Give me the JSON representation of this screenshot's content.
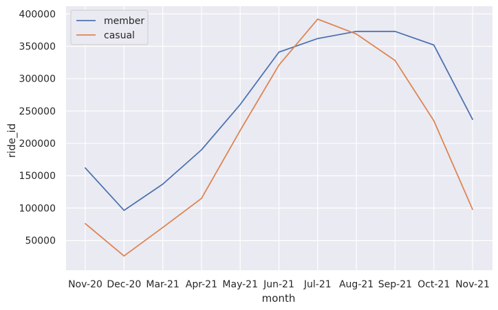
{
  "chart_data": {
    "type": "line",
    "xlabel": "month",
    "ylabel": "ride_id",
    "categories": [
      "Nov-20",
      "Dec-20",
      "Mar-21",
      "Apr-21",
      "May-21",
      "Jun-21",
      "Jul-21",
      "Aug-21",
      "Sep-21",
      "Oct-21",
      "Nov-21"
    ],
    "yticks": [
      50000,
      100000,
      150000,
      200000,
      250000,
      300000,
      350000,
      400000
    ],
    "ylim": [
      4000,
      412000
    ],
    "grid": true,
    "legend_position": "top-left",
    "background_color": "#eaeaf2",
    "series": [
      {
        "name": "member",
        "color": "#4c72b0",
        "values": [
          162000,
          96500,
          137000,
          190000,
          260000,
          341000,
          362000,
          373000,
          373000,
          352000,
          237000
        ]
      },
      {
        "name": "casual",
        "color": "#dd8452",
        "values": [
          76000,
          26000,
          70000,
          115000,
          220000,
          321000,
          392000,
          369000,
          328000,
          235000,
          98000
        ]
      }
    ]
  }
}
